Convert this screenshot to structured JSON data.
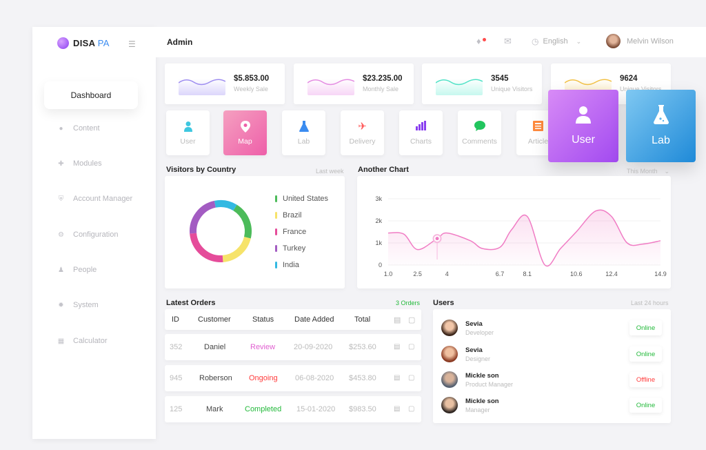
{
  "brand": {
    "name_main": "DISA",
    "name_accent": "PA"
  },
  "sidebar": {
    "active": "Dashboard",
    "items": [
      {
        "label": "Content",
        "icon": "bell-icon"
      },
      {
        "label": "Modules",
        "icon": "puzzle-icon"
      },
      {
        "label": "Account Manager",
        "icon": "shield-icon"
      },
      {
        "label": "Configuration",
        "icon": "gear-icon"
      },
      {
        "label": "People",
        "icon": "person-icon"
      },
      {
        "label": "System",
        "icon": "cog-icon"
      },
      {
        "label": "Calculator",
        "icon": "calculator-icon"
      }
    ]
  },
  "header": {
    "title": "Admin",
    "language": "English",
    "user_name": "Melvin Wilson"
  },
  "stats": [
    {
      "value": "$5.853.00",
      "label": "Weekly Sale",
      "color": "#b9a8f5"
    },
    {
      "value": "$23.235.00",
      "label": "Monthly Sale",
      "color": "#f0a8ee"
    },
    {
      "value": "3545",
      "label": "Unique Visitors",
      "color": "#8ef0e0"
    },
    {
      "value": "9624",
      "label": "Unique Visitors",
      "color": "#f5d27a"
    }
  ],
  "quick_actions": [
    {
      "label": "User",
      "icon": "user-icon",
      "color": "#3ec7e0"
    },
    {
      "label": "Map",
      "icon": "map-pin-icon",
      "color": "#ffffff"
    },
    {
      "label": "Lab",
      "icon": "flask-icon",
      "color": "#3b8cf0"
    },
    {
      "label": "Delivery",
      "icon": "plane-icon",
      "color": "#ff5a5a"
    },
    {
      "label": "Charts",
      "icon": "bar-chart-icon",
      "color": "#8a3ff0"
    },
    {
      "label": "Comments",
      "icon": "chat-icon",
      "color": "#22c55e"
    },
    {
      "label": "Article",
      "icon": "article-icon",
      "color": "#ff8a3d"
    }
  ],
  "big_tiles": [
    {
      "label": "User",
      "icon": "user-icon"
    },
    {
      "label": "Lab",
      "icon": "flask-icon"
    }
  ],
  "visitors": {
    "title": "Visitors by Country",
    "period": "Last week",
    "chart_data": {
      "type": "pie",
      "categories": [
        "United States",
        "Brazil",
        "France",
        "Turkey",
        "India"
      ],
      "values": [
        20,
        20,
        25,
        23,
        12
      ],
      "colors": [
        "#4cbb5a",
        "#f6e36a",
        "#e54c9a",
        "#a35cc2",
        "#33b9e2"
      ]
    }
  },
  "another_chart": {
    "title": "Another Chart",
    "period": "This Month",
    "chart_data": {
      "type": "area",
      "x": [
        1.0,
        1.8,
        2.5,
        3.5,
        4.0,
        5.2,
        5.8,
        6.7,
        7.3,
        8.1,
        9.0,
        9.8,
        10.6,
        11.6,
        12.4,
        13.2,
        14.0,
        14.9
      ],
      "y": [
        1.45,
        1.4,
        0.7,
        1.2,
        1.45,
        1.1,
        0.75,
        0.8,
        1.6,
        2.2,
        0.0,
        0.75,
        1.5,
        2.45,
        2.2,
        1.0,
        0.95,
        1.1
      ],
      "x_ticks": [
        "1.0",
        "2.5",
        "4",
        "6.7",
        "8.1",
        "10.6",
        "12.4",
        "14.9"
      ],
      "y_ticks": [
        "3k",
        "2k",
        "1k",
        "0"
      ],
      "highlight_index": 3,
      "color": "#f07cc4"
    }
  },
  "orders": {
    "title": "Latest Orders",
    "count": "3 Orders",
    "columns": [
      "ID",
      "Customer",
      "Status",
      "Date Added",
      "Total"
    ],
    "rows": [
      {
        "id": "352",
        "customer": "Daniel",
        "status": "Review",
        "status_color": "#e05fd0",
        "date": "20-09-2020",
        "total": "$253.60"
      },
      {
        "id": "945",
        "customer": "Roberson",
        "status": "Ongoing",
        "status_color": "#ff3b3b",
        "date": "06-08-2020",
        "total": "$453.80"
      },
      {
        "id": "125",
        "customer": "Mark",
        "status": "Completed",
        "status_color": "#22b93a",
        "date": "15-01-2020",
        "total": "$983.50"
      }
    ]
  },
  "users": {
    "title": "Users",
    "period": "Last 24 hours",
    "items": [
      {
        "name": "Sevia",
        "role": "Developer",
        "status": "Online",
        "status_color": "#22b93a"
      },
      {
        "name": "Sevia",
        "role": "Designer",
        "status": "Online",
        "status_color": "#22b93a"
      },
      {
        "name": "Mickle son",
        "role": "Product Manager",
        "status": "Offline",
        "status_color": "#ff3b3b"
      },
      {
        "name": "Mickle son",
        "role": "Manager",
        "status": "Online",
        "status_color": "#22b93a"
      }
    ]
  }
}
